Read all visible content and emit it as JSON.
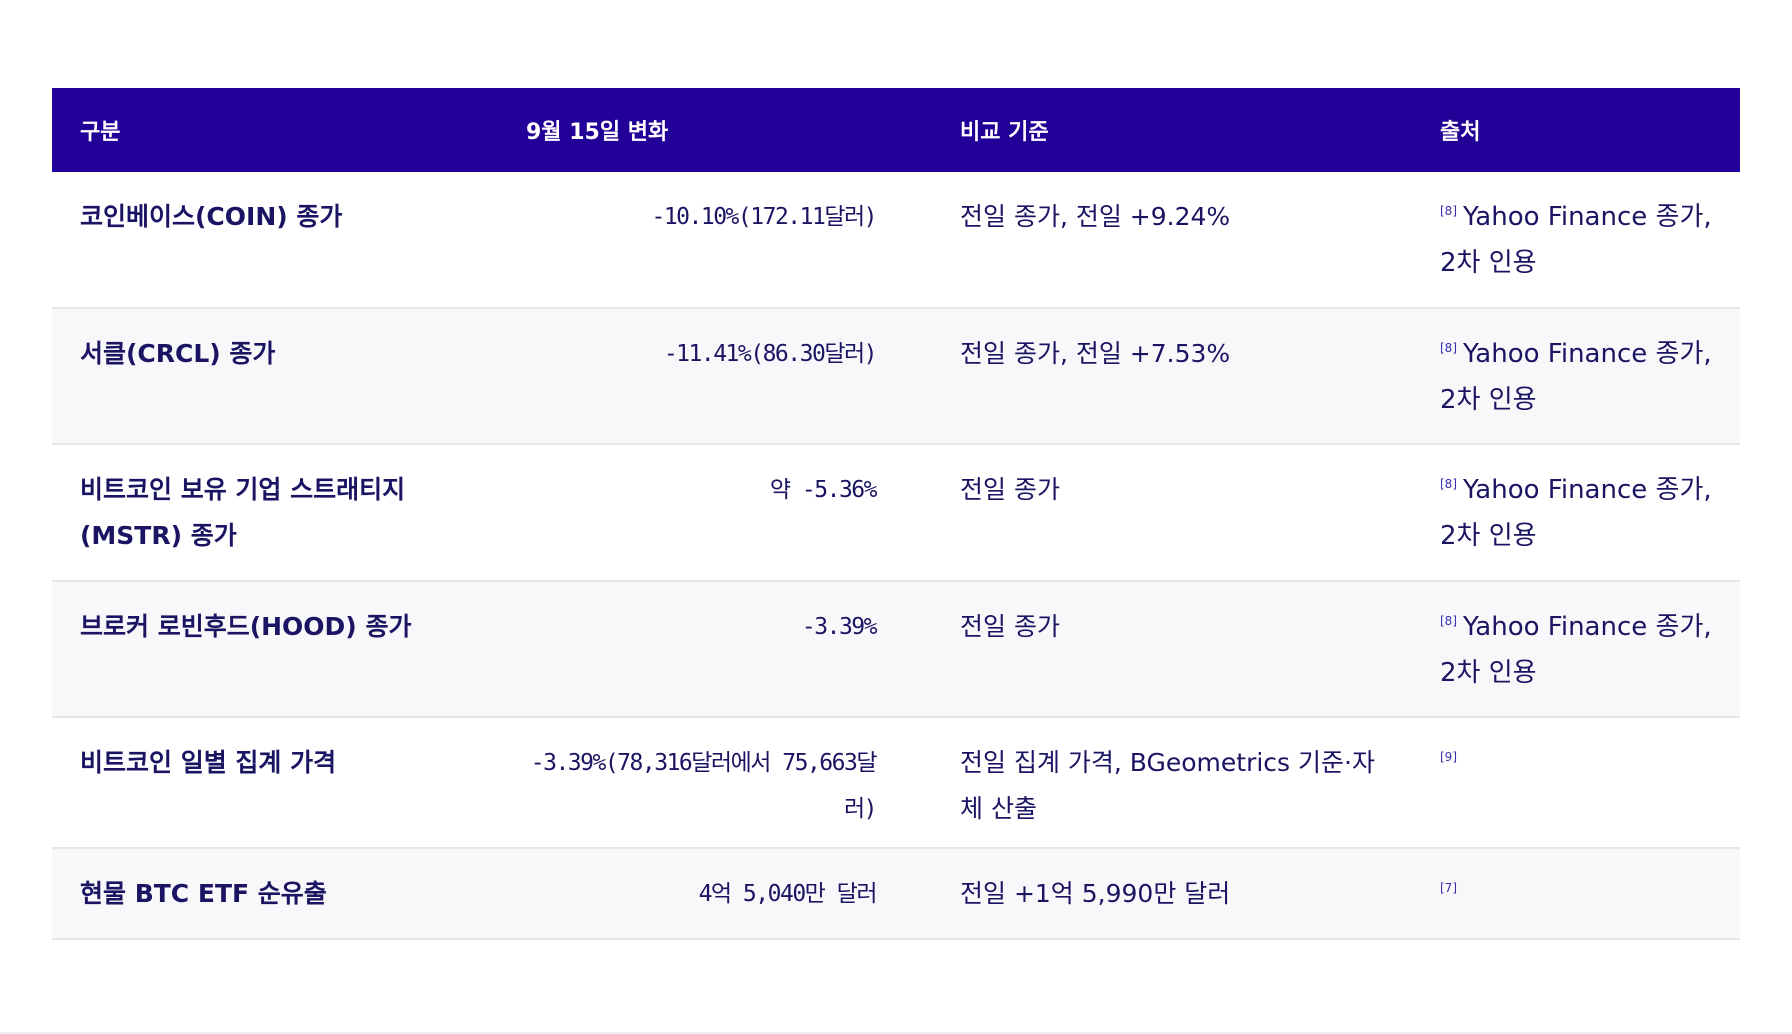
{
  "table": {
    "headers": {
      "item": "구분",
      "change": "9월 15일 변화",
      "basis": "비교 기준",
      "source": "출처"
    },
    "rows": [
      {
        "item": "코인베이스(COIN) 종가",
        "change": "-10.10%(172.11달러)",
        "basis": "전일 종가, 전일 +9.24%",
        "ref": "[8]",
        "source": "Yahoo Finance 종가, 2차 인용"
      },
      {
        "item": "서클(CRCL) 종가",
        "change": "-11.41%(86.30달러)",
        "basis": "전일 종가, 전일 +7.53%",
        "ref": "[8]",
        "source": "Yahoo Finance 종가, 2차 인용"
      },
      {
        "item": "비트코인 보유 기업 스트래티지(MSTR) 종가",
        "change": "약 -5.36%",
        "basis": "전일 종가",
        "ref": "[8]",
        "source": "Yahoo Finance 종가, 2차 인용"
      },
      {
        "item": "브로커 로빈후드(HOOD) 종가",
        "change": "-3.39%",
        "basis": "전일 종가",
        "ref": "[8]",
        "source": "Yahoo Finance 종가, 2차 인용"
      },
      {
        "item": "비트코인 일별 집계 가격",
        "change": "-3.39%(78,316달러에서 75,663달러)",
        "basis": "전일 집계 가격, BGeometrics 기준·자체 산출",
        "ref": "[9]",
        "source": ""
      },
      {
        "item": "현물 BTC ETF 순유출",
        "change": "4억 5,040만 달러",
        "basis": "전일 +1억 5,990만 달러",
        "ref": "[7]",
        "source": ""
      }
    ]
  }
}
